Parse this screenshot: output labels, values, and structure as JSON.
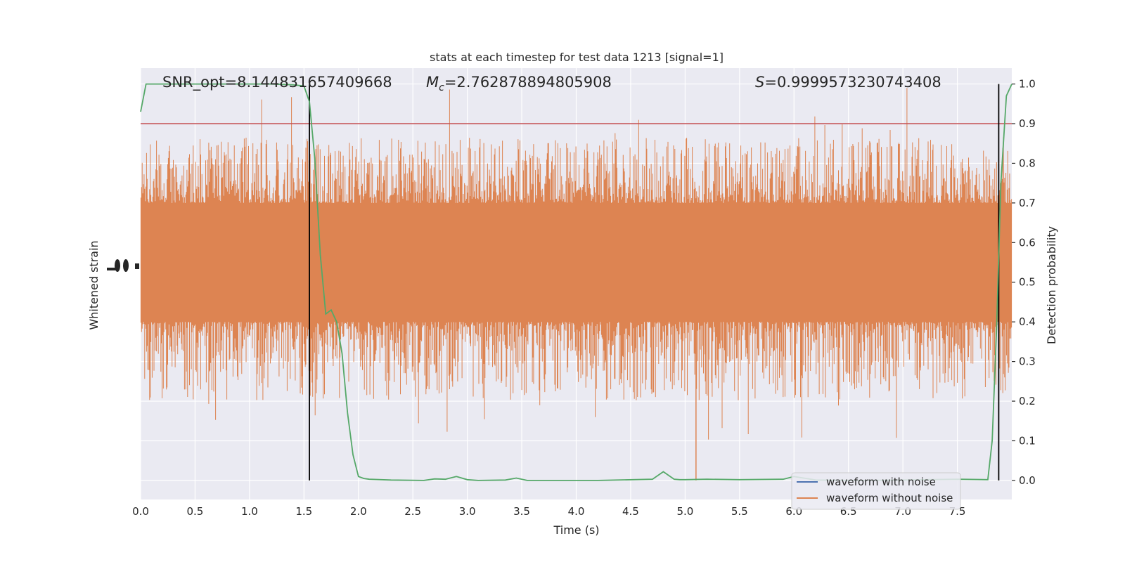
{
  "chart_data": {
    "type": "line",
    "title": "stats at each timestep for test data 1213 [signal=1]",
    "xlabel": "Time (s)",
    "ylabel_left": "Whitened strain",
    "ylabel_right": "Detection probability",
    "xlim": [
      0.0,
      8.0
    ],
    "ylim_right": [
      -0.048,
      1.04
    ],
    "x_ticks": [
      "0.0",
      "0.5",
      "1.0",
      "1.5",
      "2.0",
      "2.5",
      "3.0",
      "3.5",
      "4.0",
      "4.5",
      "5.0",
      "5.5",
      "6.0",
      "6.5",
      "7.0",
      "7.5"
    ],
    "right_ticks": [
      "0.0",
      "0.1",
      "0.2",
      "0.3",
      "0.4",
      "0.5",
      "0.6",
      "0.7",
      "0.8",
      "0.9",
      "1.0"
    ],
    "grid": true,
    "legend_position": "lower-right",
    "annotations": {
      "snr_label": "SNR_opt=8.144831657409668",
      "mc_symbol": "M",
      "mc_sub": "c",
      "mc_value": "=2.762878894805908",
      "s_symbol": "S",
      "s_value": "=0.9999573230743408"
    },
    "threshold": 0.9,
    "vertical_markers": [
      1.55,
      7.88
    ],
    "series": [
      {
        "name": "waveform with noise",
        "color": "#4c72b0",
        "axis": "left",
        "note_values": "fully hidden behind orange trace"
      },
      {
        "name": "waveform without noise",
        "color": "#dd8452",
        "axis": "left",
        "band_right_axis_equivalent": {
          "core": [
            0.4,
            0.7
          ],
          "typical_peaks": [
            0.22,
            0.85
          ],
          "extreme": [
            0.0,
            1.0
          ]
        }
      },
      {
        "name": "detection probability",
        "color": "#55a868",
        "axis": "right",
        "x": [
          0.0,
          0.05,
          0.1,
          0.2,
          0.4,
          0.6,
          0.8,
          1.0,
          1.2,
          1.4,
          1.5,
          1.55,
          1.6,
          1.65,
          1.7,
          1.75,
          1.8,
          1.85,
          1.9,
          1.95,
          2.0,
          2.05,
          2.1,
          2.3,
          2.6,
          2.7,
          2.8,
          2.9,
          3.0,
          3.1,
          3.35,
          3.45,
          3.55,
          3.8,
          4.2,
          4.7,
          4.8,
          4.9,
          4.95,
          5.0,
          5.2,
          5.5,
          5.9,
          6.0,
          6.2,
          6.6,
          7.0,
          7.5,
          7.78,
          7.82,
          7.86,
          7.9,
          7.95,
          8.0
        ],
        "y": [
          0.93,
          1.0,
          1.0,
          1.0,
          1.0,
          1.0,
          1.0,
          1.0,
          1.0,
          0.998,
          0.995,
          0.955,
          0.81,
          0.57,
          0.42,
          0.43,
          0.4,
          0.32,
          0.17,
          0.065,
          0.01,
          0.005,
          0.003,
          0.001,
          0.0,
          0.004,
          0.003,
          0.01,
          0.002,
          0.0,
          0.001,
          0.006,
          0.0,
          0.0,
          0.0,
          0.003,
          0.022,
          0.003,
          0.002,
          0.002,
          0.003,
          0.002,
          0.003,
          0.01,
          0.001,
          0.0,
          0.001,
          0.003,
          0.002,
          0.1,
          0.38,
          0.75,
          0.97,
          1.0
        ]
      }
    ],
    "colors": {
      "background": "#eaeaf2",
      "grid": "#ffffff",
      "threshold": "#c44e52",
      "markers": "#000000"
    }
  }
}
